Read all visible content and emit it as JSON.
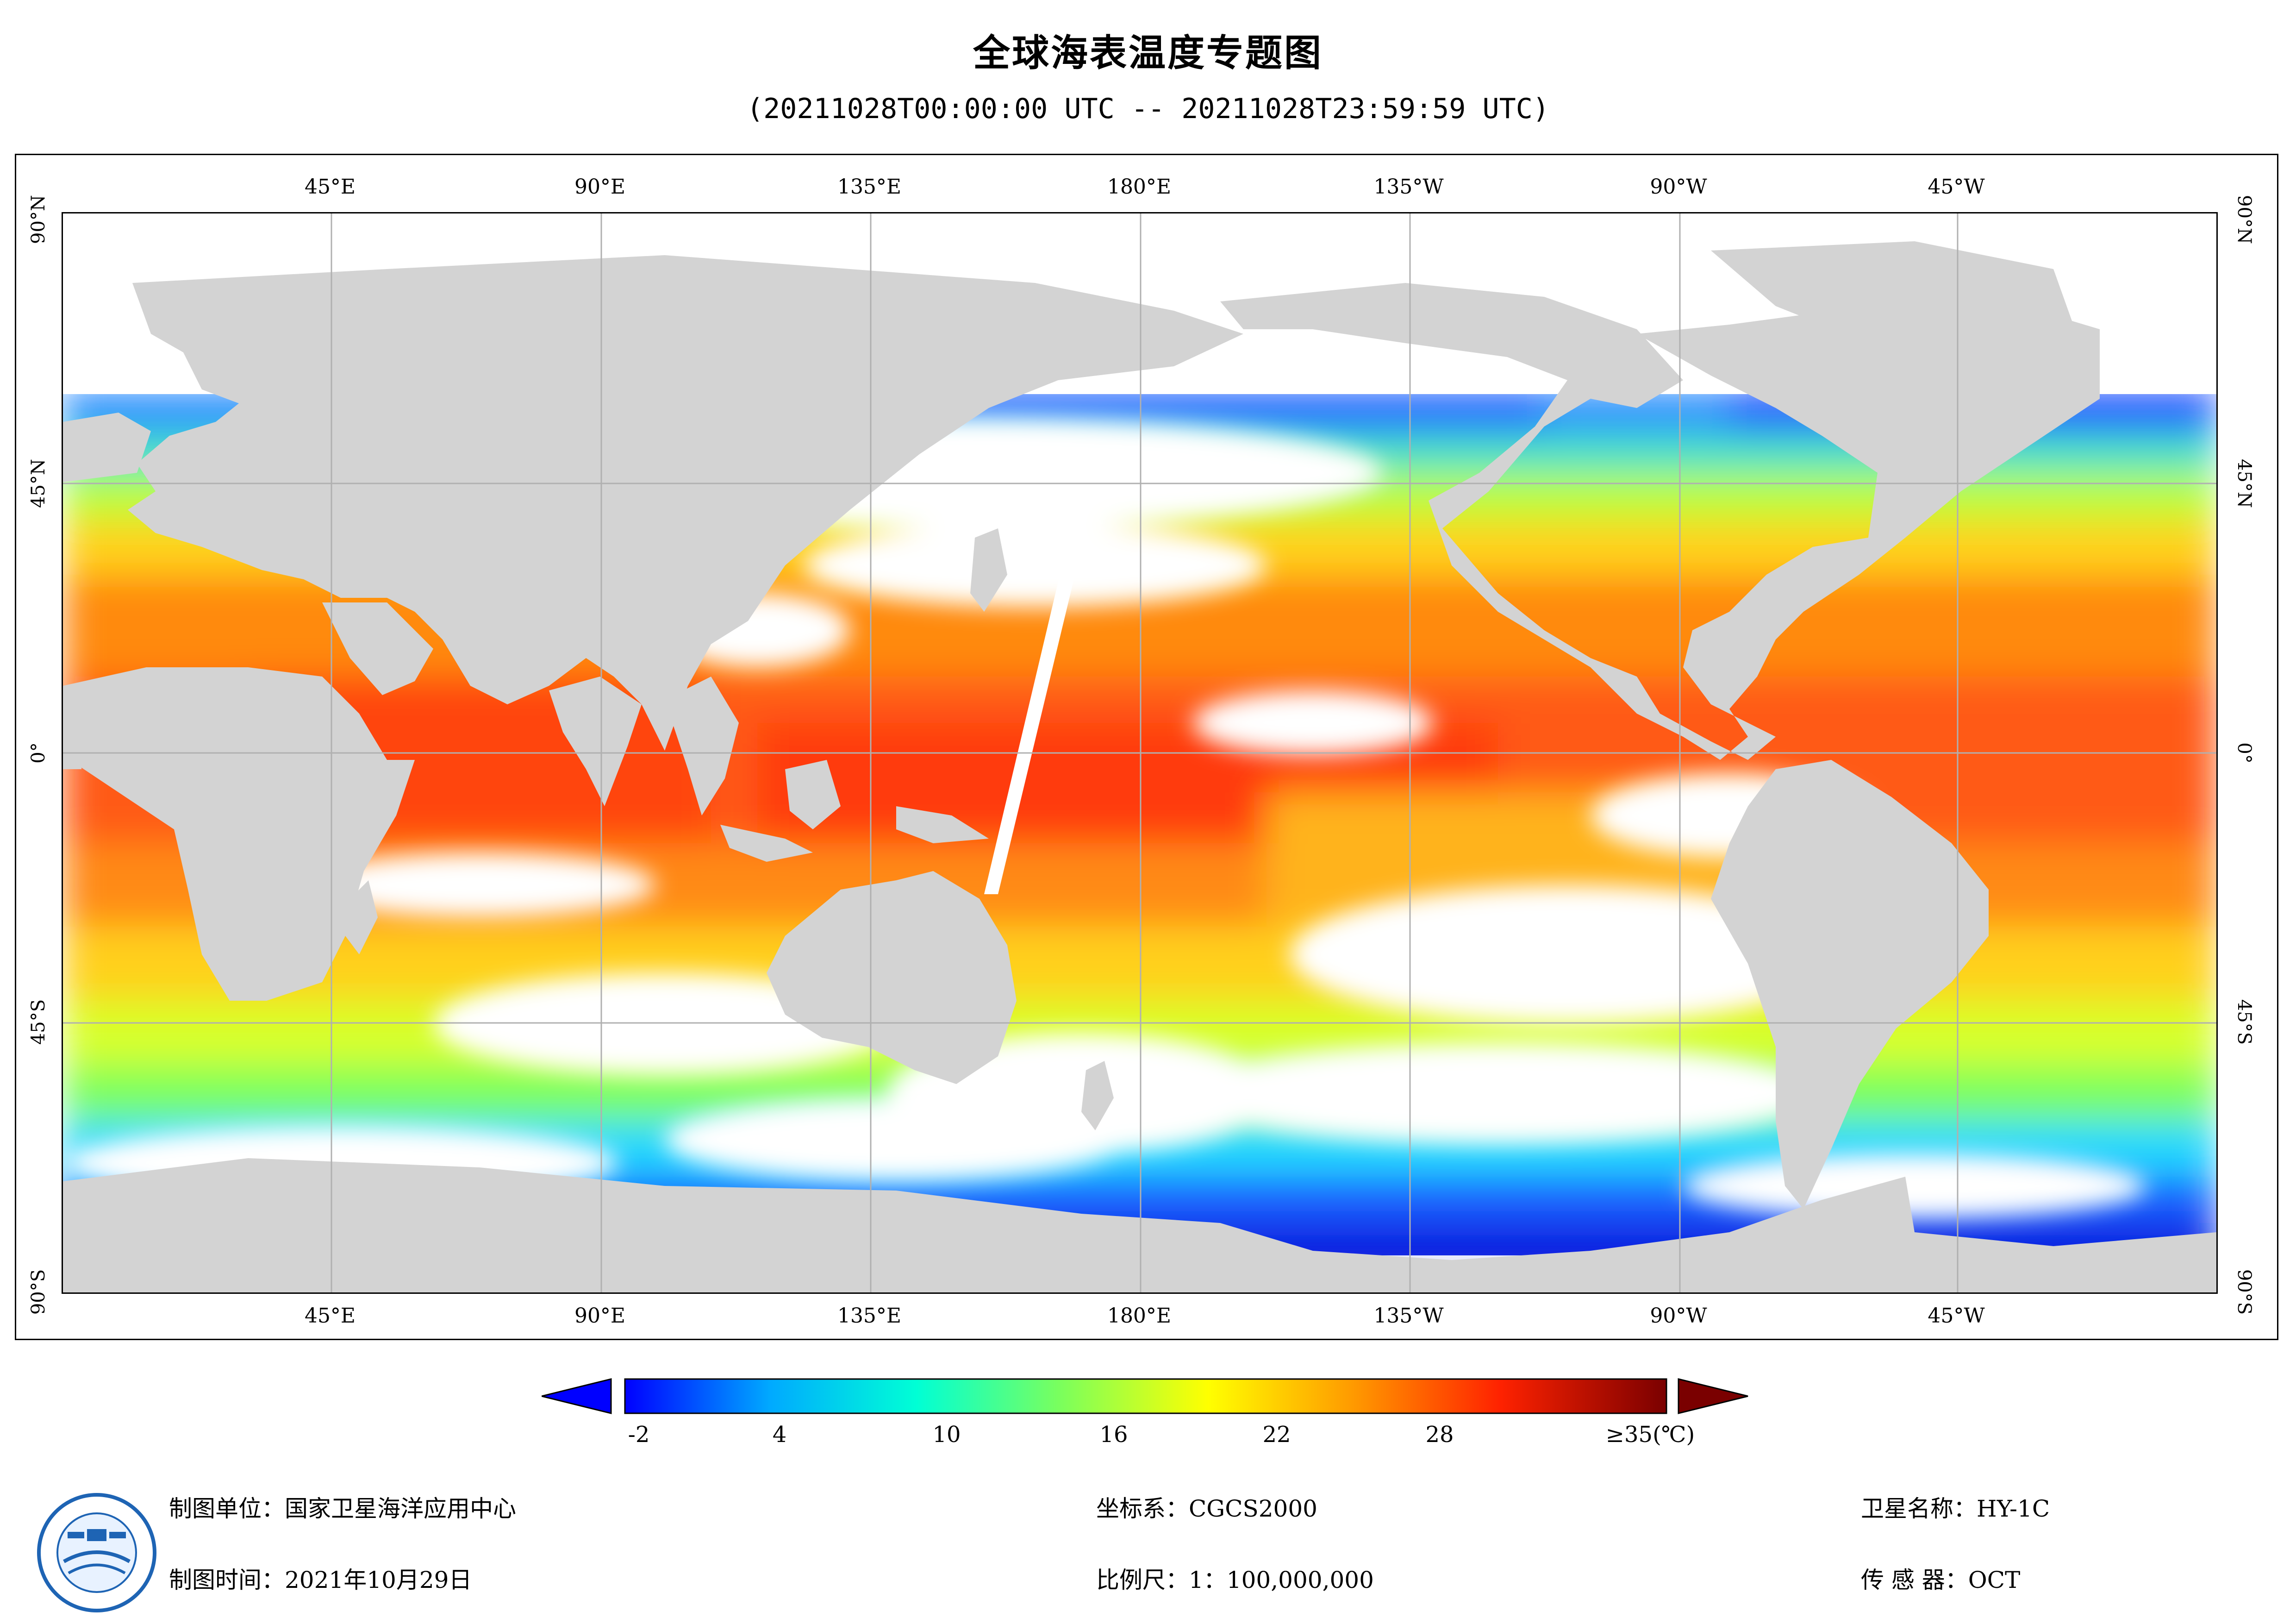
{
  "title": "全球海表温度专题图",
  "period": "(20211028T00:00:00 UTC -- 20211028T23:59:59 UTC)",
  "axes": {
    "lon_labels": [
      "45°E",
      "90°E",
      "135°E",
      "180°E",
      "135°W",
      "90°W",
      "45°W"
    ],
    "lat_labels": [
      "90°N",
      "45°N",
      "0°",
      "45°S",
      "90°S"
    ]
  },
  "legend": {
    "labels": [
      "-2",
      "4",
      "10",
      "16",
      "22",
      "28",
      "≥35(℃)"
    ],
    "min": -2,
    "max": 35,
    "colors": [
      "#0000ff",
      "#00aaff",
      "#00ffd5",
      "#7cff5b",
      "#ffff00",
      "#ff9900",
      "#ff3300",
      "#7a0000"
    ]
  },
  "footer": {
    "org": "制图单位：国家卫星海洋应用中心",
    "date": "制图时间：2021年10月29日",
    "crs": "坐标系：CGCS2000",
    "scale": "比例尺：1：100,000,000",
    "satellite": "卫星名称：HY-1C",
    "sensor": "传 感 器：OCT"
  },
  "colors": {
    "land": "#d3d3d3",
    "grid": "#b0b0b0",
    "no_data": "#ffffff"
  }
}
